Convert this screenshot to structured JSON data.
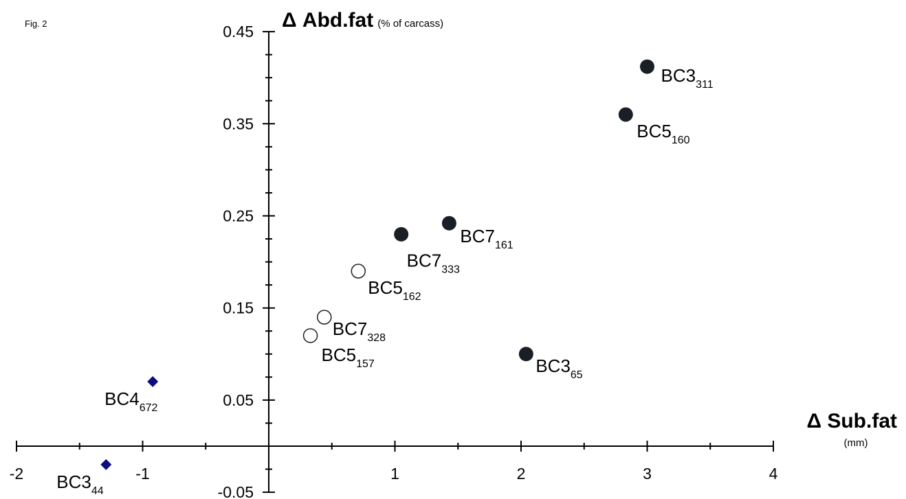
{
  "figure_label": "Fig. 2",
  "chart_data": {
    "type": "scatter",
    "title": "",
    "xlabel": "Δ Sub.fat",
    "xlabel_unit": "(mm)",
    "ylabel": "Δ Abd.fat",
    "ylabel_unit": "(% of carcass)",
    "xlim": [
      -2,
      4
    ],
    "ylim": [
      -0.05,
      0.45
    ],
    "x_ticks": [
      -2,
      -1,
      1,
      2,
      3,
      4
    ],
    "x_tick_labels": [
      "-2",
      "-1",
      "1",
      "2",
      "3",
      "4"
    ],
    "y_ticks": [
      0.45,
      0.35,
      0.25,
      0.15,
      0.05,
      -0.05
    ],
    "y_tick_labels": [
      "0.45",
      "0.35",
      "0.25",
      "0.15",
      "0.05",
      "-0.05"
    ],
    "grid": false,
    "axes_cross_at_origin": true,
    "series": [
      {
        "marker": "filled-circle",
        "color": "#1a1f26",
        "points": [
          {
            "x": 3.0,
            "y": 0.412,
            "label": "BC3",
            "sub": "311"
          },
          {
            "x": 2.83,
            "y": 0.36,
            "label": "BC5",
            "sub": "160"
          },
          {
            "x": 1.43,
            "y": 0.242,
            "label": "BC7",
            "sub": "161"
          },
          {
            "x": 1.05,
            "y": 0.23,
            "label": "BC7",
            "sub": "333"
          },
          {
            "x": 2.04,
            "y": 0.1,
            "label": "BC3",
            "sub": "65"
          }
        ]
      },
      {
        "marker": "open-circle",
        "color": "#1a1f26",
        "points": [
          {
            "x": 0.71,
            "y": 0.19,
            "label": "BC5",
            "sub": "162"
          },
          {
            "x": 0.44,
            "y": 0.14,
            "label": "BC7",
            "sub": "328"
          },
          {
            "x": 0.33,
            "y": 0.12,
            "label": "BC5",
            "sub": "157"
          }
        ]
      },
      {
        "marker": "diamond",
        "color": "#0d0d80",
        "points": [
          {
            "x": -0.92,
            "y": 0.07,
            "label": "BC4",
            "sub": "672"
          },
          {
            "x": -1.29,
            "y": -0.02,
            "label": "BC3",
            "sub": "44"
          }
        ]
      }
    ]
  }
}
